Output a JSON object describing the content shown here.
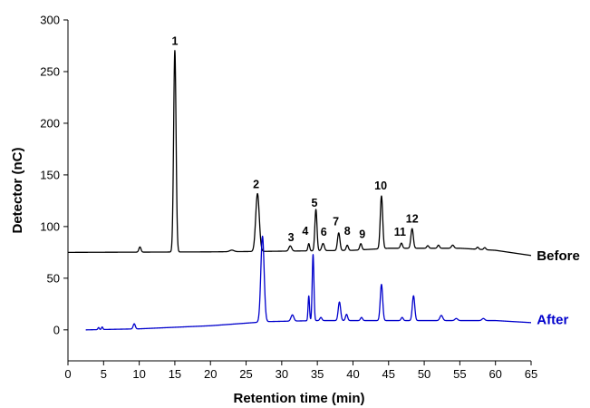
{
  "chart_data": {
    "type": "line",
    "xlabel": "Retention time (min)",
    "ylabel": "Detector (nC)",
    "xlim": [
      0,
      65
    ],
    "ylim": [
      -30,
      300
    ],
    "x_ticks": [
      0,
      5,
      10,
      15,
      20,
      25,
      30,
      35,
      40,
      45,
      50,
      55,
      60,
      65
    ],
    "y_ticks": [
      0,
      50,
      100,
      150,
      200,
      250,
      300
    ],
    "grid": false,
    "series": [
      {
        "name": "Before",
        "color": "#000000",
        "x_range": [
          0,
          65
        ],
        "baseline": [
          [
            0,
            75
          ],
          [
            20,
            75.5
          ],
          [
            28,
            76
          ],
          [
            40,
            77
          ],
          [
            45,
            79
          ],
          [
            50,
            79
          ],
          [
            55,
            79
          ],
          [
            60,
            77
          ],
          [
            65,
            72
          ]
        ],
        "peaks": [
          {
            "x": 10.1,
            "height": 5,
            "width": 0.15
          },
          {
            "x": 15.0,
            "height": 195,
            "width": 0.17
          },
          {
            "x": 23.0,
            "height": 1.5,
            "width": 0.3
          },
          {
            "x": 26.6,
            "height": 56,
            "width": 0.25
          },
          {
            "x": 31.2,
            "height": 5,
            "width": 0.2
          },
          {
            "x": 33.8,
            "height": 7,
            "width": 0.12
          },
          {
            "x": 34.8,
            "height": 40,
            "width": 0.15
          },
          {
            "x": 35.8,
            "height": 7,
            "width": 0.18
          },
          {
            "x": 38.0,
            "height": 17,
            "width": 0.17
          },
          {
            "x": 39.2,
            "height": 5,
            "width": 0.15
          },
          {
            "x": 41.1,
            "height": 6,
            "width": 0.15
          },
          {
            "x": 44.0,
            "height": 51,
            "width": 0.17
          },
          {
            "x": 46.8,
            "height": 5,
            "width": 0.15
          },
          {
            "x": 48.3,
            "height": 19,
            "width": 0.17
          },
          {
            "x": 50.5,
            "height": 2.5,
            "width": 0.15
          },
          {
            "x": 52.0,
            "height": 3,
            "width": 0.15
          },
          {
            "x": 54.0,
            "height": 3,
            "width": 0.18
          },
          {
            "x": 57.5,
            "height": 2,
            "width": 0.15
          },
          {
            "x": 58.5,
            "height": 2,
            "width": 0.15
          }
        ]
      },
      {
        "name": "After",
        "color": "#0000cc",
        "x_range": [
          2.5,
          65
        ],
        "baseline": [
          [
            2.5,
            0
          ],
          [
            10,
            1
          ],
          [
            20,
            4
          ],
          [
            26,
            7
          ],
          [
            28,
            8
          ],
          [
            35,
            9
          ],
          [
            45,
            9
          ],
          [
            55,
            9
          ],
          [
            60,
            9
          ],
          [
            65,
            7
          ]
        ],
        "peaks": [
          {
            "x": 4.3,
            "height": 2,
            "width": 0.1
          },
          {
            "x": 4.8,
            "height": 2.5,
            "width": 0.1
          },
          {
            "x": 9.3,
            "height": 5,
            "width": 0.15
          },
          {
            "x": 27.3,
            "height": 83,
            "width": 0.23
          },
          {
            "x": 31.5,
            "height": 6,
            "width": 0.2
          },
          {
            "x": 33.8,
            "height": 24,
            "width": 0.1
          },
          {
            "x": 34.4,
            "height": 64,
            "width": 0.12
          },
          {
            "x": 35.5,
            "height": 3,
            "width": 0.15
          },
          {
            "x": 38.1,
            "height": 18,
            "width": 0.17
          },
          {
            "x": 39.1,
            "height": 6,
            "width": 0.15
          },
          {
            "x": 41.2,
            "height": 3,
            "width": 0.15
          },
          {
            "x": 44.0,
            "height": 35,
            "width": 0.17
          },
          {
            "x": 46.9,
            "height": 3,
            "width": 0.15
          },
          {
            "x": 48.5,
            "height": 24,
            "width": 0.17
          },
          {
            "x": 52.4,
            "height": 5,
            "width": 0.2
          },
          {
            "x": 54.5,
            "height": 2,
            "width": 0.2
          },
          {
            "x": 58.3,
            "height": 2,
            "width": 0.2
          }
        ]
      }
    ],
    "peak_labels": [
      {
        "text": "1",
        "x": 15.0,
        "y": 276
      },
      {
        "text": "2",
        "x": 26.4,
        "y": 137
      },
      {
        "text": "3",
        "x": 31.3,
        "y": 86
      },
      {
        "text": "4",
        "x": 33.3,
        "y": 92
      },
      {
        "text": "5",
        "x": 34.6,
        "y": 119
      },
      {
        "text": "6",
        "x": 35.9,
        "y": 91
      },
      {
        "text": "7",
        "x": 37.6,
        "y": 101
      },
      {
        "text": "8",
        "x": 39.2,
        "y": 92
      },
      {
        "text": "9",
        "x": 41.3,
        "y": 89
      },
      {
        "text": "10",
        "x": 43.9,
        "y": 136
      },
      {
        "text": "11",
        "x": 46.6,
        "y": 91
      },
      {
        "text": "12",
        "x": 48.3,
        "y": 104
      }
    ],
    "series_labels": [
      {
        "text": "Before",
        "x": 65.8,
        "y": 72,
        "color": "#000000"
      },
      {
        "text": "After",
        "x": 65.8,
        "y": 10,
        "color": "#0000cc"
      }
    ]
  }
}
